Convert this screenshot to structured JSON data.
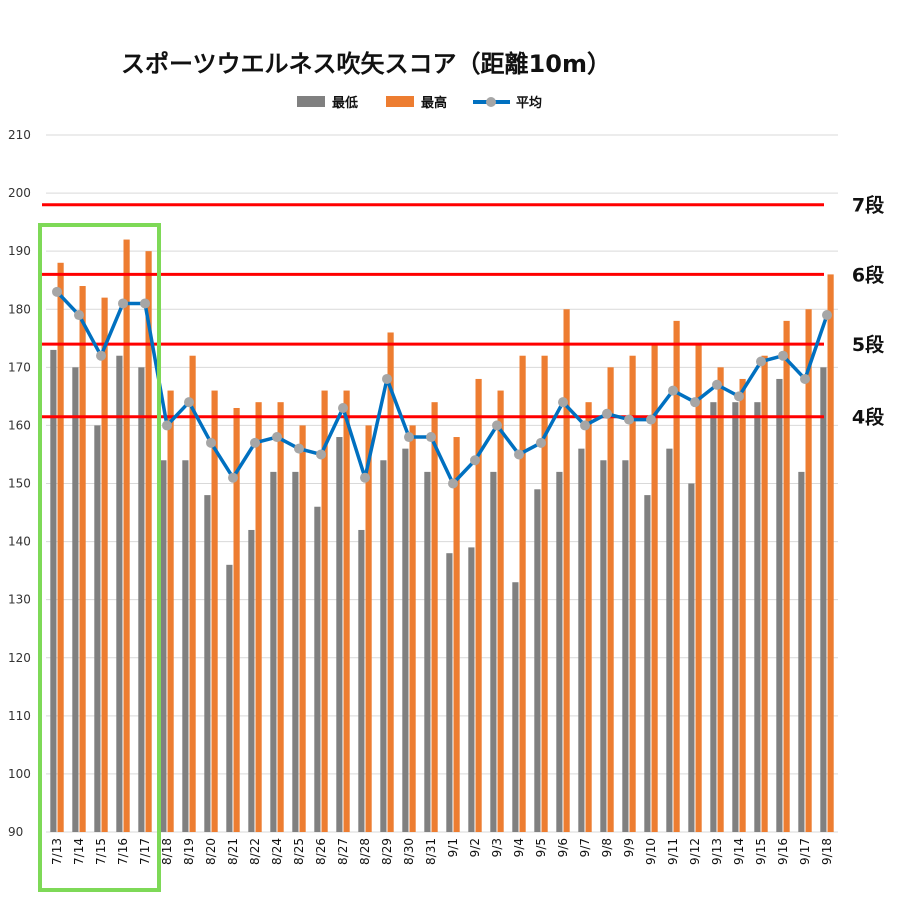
{
  "chart_data": {
    "type": "bar",
    "title": "スポーツウエルネス吹矢スコア（距離10m）",
    "categories": [
      "7/13",
      "7/14",
      "7/15",
      "7/16",
      "7/17",
      "8/18",
      "8/19",
      "8/20",
      "8/21",
      "8/22",
      "8/24",
      "8/25",
      "8/26",
      "8/27",
      "8/28",
      "8/29",
      "8/30",
      "8/31",
      "9/1",
      "9/2",
      "9/3",
      "9/4",
      "9/5",
      "9/6",
      "9/7",
      "9/8",
      "9/9",
      "9/10",
      "9/11",
      "9/12",
      "9/13",
      "9/14",
      "9/15",
      "9/16",
      "9/17",
      "9/18"
    ],
    "series": [
      {
        "name": "最低",
        "type": "bar",
        "color": "#808080",
        "values": [
          173,
          170,
          160,
          172,
          170,
          154,
          154,
          148,
          136,
          142,
          152,
          152,
          146,
          158,
          142,
          154,
          156,
          152,
          138,
          139,
          152,
          133,
          149,
          152,
          156,
          154,
          154,
          148,
          156,
          150,
          164,
          164,
          164,
          168,
          152,
          170
        ]
      },
      {
        "name": "最高",
        "type": "bar",
        "color": "#ED7D31",
        "values": [
          188,
          184,
          182,
          192,
          190,
          166,
          172,
          166,
          163,
          164,
          164,
          160,
          166,
          166,
          160,
          176,
          160,
          164,
          158,
          168,
          166,
          172,
          172,
          180,
          164,
          170,
          172,
          174,
          178,
          174,
          170,
          168,
          172,
          178,
          180,
          186
        ]
      },
      {
        "name": "平均",
        "type": "line",
        "color": "#0070C0",
        "marker_color": "#A6A6A6",
        "values": [
          183,
          179,
          172,
          181,
          181,
          160,
          164,
          157,
          151,
          157,
          158,
          156,
          155,
          163,
          151,
          168,
          158,
          158,
          150,
          154,
          160,
          155,
          157,
          164,
          160,
          162,
          161,
          161,
          166,
          164,
          167,
          165,
          171,
          172,
          168,
          179
        ]
      }
    ],
    "ylim": [
      90,
      210
    ],
    "yticks": [
      90,
      100,
      110,
      120,
      130,
      140,
      150,
      160,
      170,
      180,
      190,
      200,
      210
    ],
    "grid": true,
    "legend_position": "top",
    "reference_lines": [
      {
        "label": "7段",
        "value": 198,
        "color": "#FF0000"
      },
      {
        "label": "6段",
        "value": 186,
        "color": "#FF0000"
      },
      {
        "label": "5段",
        "value": 174,
        "color": "#FF0000"
      },
      {
        "label": "4段",
        "value": 161.5,
        "color": "#FF0000"
      }
    ],
    "highlight": {
      "start": "7/13",
      "end": "7/17",
      "color": "#7ED957"
    }
  }
}
